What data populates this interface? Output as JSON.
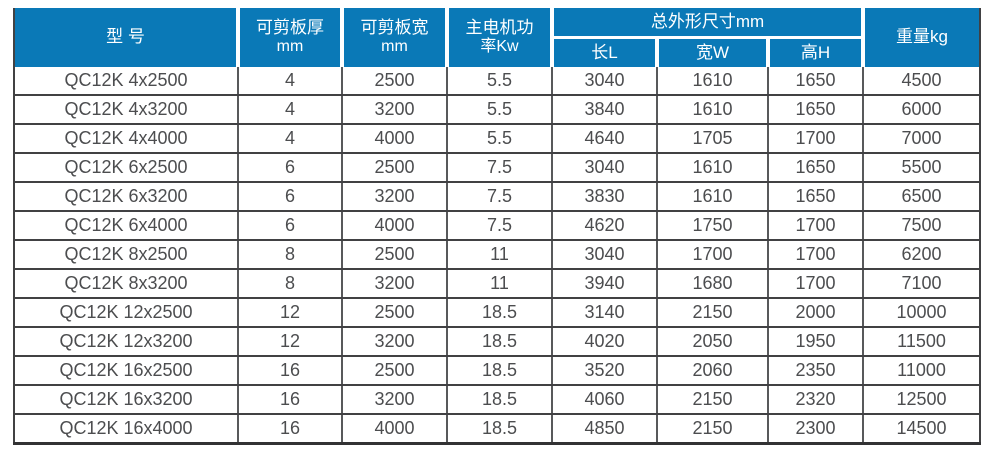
{
  "colors": {
    "header_bg": "#0a79b7",
    "header_text": "#ffffff",
    "body_text": "#4c4d4f",
    "grid_line": "#414143"
  },
  "table": {
    "header": {
      "model": "型 号",
      "thickness_l1": "可剪板厚",
      "thickness_l2": "mm",
      "width_l1": "可剪板宽",
      "width_l2": "mm",
      "power_l1": "主电机功",
      "power_l2": "率Kw",
      "dims_group": "总外形尺寸mm",
      "dim_length": "长L",
      "dim_width": "宽W",
      "dim_height": "高H",
      "weight": "重量kg"
    },
    "rows": [
      [
        "QC12K 4x2500",
        "4",
        "2500",
        "5.5",
        "3040",
        "1610",
        "1650",
        "4500"
      ],
      [
        "QC12K 4x3200",
        "4",
        "3200",
        "5.5",
        "3840",
        "1610",
        "1650",
        "6000"
      ],
      [
        "QC12K 4x4000",
        "4",
        "4000",
        "5.5",
        "4640",
        "1705",
        "1700",
        "7000"
      ],
      [
        "QC12K 6x2500",
        "6",
        "2500",
        "7.5",
        "3040",
        "1610",
        "1650",
        "5500"
      ],
      [
        "QC12K 6x3200",
        "6",
        "3200",
        "7.5",
        "3830",
        "1610",
        "1650",
        "6500"
      ],
      [
        "QC12K 6x4000",
        "6",
        "4000",
        "7.5",
        "4620",
        "1750",
        "1700",
        "7500"
      ],
      [
        "QC12K 8x2500",
        "8",
        "2500",
        "11",
        "3040",
        "1700",
        "1700",
        "6200"
      ],
      [
        "QC12K 8x3200",
        "8",
        "3200",
        "11",
        "3940",
        "1680",
        "1700",
        "7100"
      ],
      [
        "QC12K 12x2500",
        "12",
        "2500",
        "18.5",
        "3140",
        "2150",
        "2000",
        "10000"
      ],
      [
        "QC12K 12x3200",
        "12",
        "3200",
        "18.5",
        "4020",
        "2050",
        "1950",
        "11500"
      ],
      [
        "QC12K 16x2500",
        "16",
        "2500",
        "18.5",
        "3520",
        "2060",
        "2350",
        "11000"
      ],
      [
        "QC12K 16x3200",
        "16",
        "3200",
        "18.5",
        "4060",
        "2150",
        "2320",
        "12500"
      ],
      [
        "QC12K 16x4000",
        "16",
        "4000",
        "18.5",
        "4850",
        "2150",
        "2300",
        "14500"
      ]
    ]
  },
  "chart_data": {
    "type": "table",
    "columns": [
      "型 号",
      "可剪板厚mm",
      "可剪板宽mm",
      "主电机功率Kw",
      "总外形尺寸mm 长L",
      "总外形尺寸mm 宽W",
      "总外形尺寸mm 高H",
      "重量kg"
    ],
    "rows": [
      [
        "QC12K 4x2500",
        4,
        2500,
        5.5,
        3040,
        1610,
        1650,
        4500
      ],
      [
        "QC12K 4x3200",
        4,
        3200,
        5.5,
        3840,
        1610,
        1650,
        6000
      ],
      [
        "QC12K 4x4000",
        4,
        4000,
        5.5,
        4640,
        1705,
        1700,
        7000
      ],
      [
        "QC12K 6x2500",
        6,
        2500,
        7.5,
        3040,
        1610,
        1650,
        5500
      ],
      [
        "QC12K 6x3200",
        6,
        3200,
        7.5,
        3830,
        1610,
        1650,
        6500
      ],
      [
        "QC12K 6x4000",
        6,
        4000,
        7.5,
        4620,
        1750,
        1700,
        7500
      ],
      [
        "QC12K 8x2500",
        8,
        2500,
        11,
        3040,
        1700,
        1700,
        6200
      ],
      [
        "QC12K 8x3200",
        8,
        3200,
        11,
        3940,
        1680,
        1700,
        7100
      ],
      [
        "QC12K 12x2500",
        12,
        2500,
        18.5,
        3140,
        2150,
        2000,
        10000
      ],
      [
        "QC12K 12x3200",
        12,
        3200,
        18.5,
        4020,
        2050,
        1950,
        11500
      ],
      [
        "QC12K 16x2500",
        16,
        2500,
        18.5,
        3520,
        2060,
        2350,
        11000
      ],
      [
        "QC12K 16x3200",
        16,
        3200,
        18.5,
        4060,
        2150,
        2320,
        12500
      ],
      [
        "QC12K 16x4000",
        16,
        4000,
        18.5,
        4850,
        2150,
        2300,
        14500
      ]
    ]
  }
}
